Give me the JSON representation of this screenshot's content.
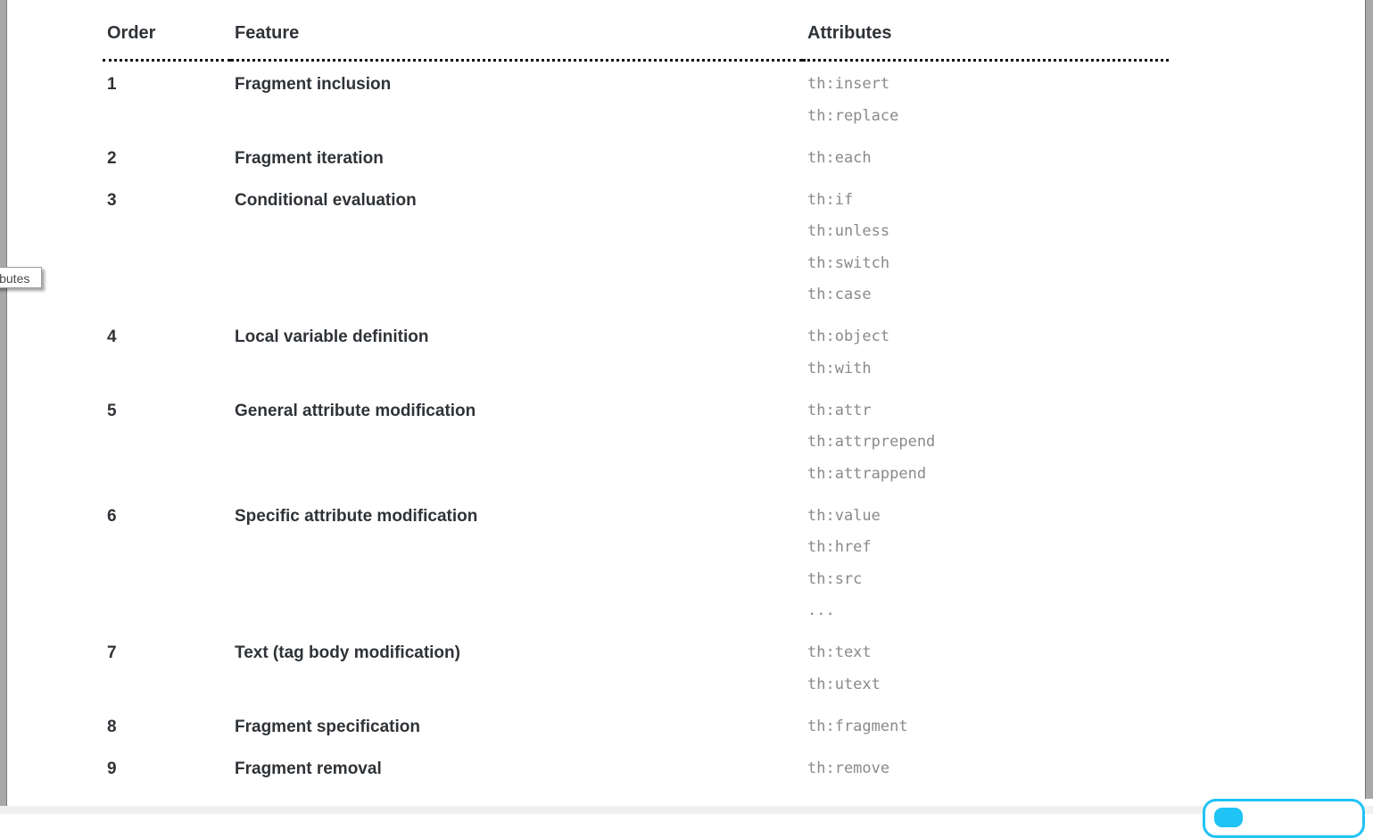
{
  "page": {
    "background": "#ffffff"
  },
  "colors": {
    "heading_text": "#2f3337",
    "attribute_code_text": "#888a8c",
    "rule_dotted": "#111111",
    "edge_strip": "#a8a8a8",
    "bottom_track": "#f0f0ef",
    "accent_cyan": "#1fc3f5"
  },
  "tooltip": {
    "text": "ibutes"
  },
  "table": {
    "headers": [
      "Order",
      "Feature",
      "Attributes"
    ],
    "rows": [
      {
        "order": "1",
        "feature": "Fragment inclusion",
        "attributes": [
          "th:insert",
          "th:replace"
        ]
      },
      {
        "order": "2",
        "feature": "Fragment iteration",
        "attributes": [
          "th:each"
        ]
      },
      {
        "order": "3",
        "feature": "Conditional evaluation",
        "attributes": [
          "th:if",
          "th:unless",
          "th:switch",
          "th:case"
        ]
      },
      {
        "order": "4",
        "feature": "Local variable definition",
        "attributes": [
          "th:object",
          "th:with"
        ]
      },
      {
        "order": "5",
        "feature": "General attribute modification",
        "attributes": [
          "th:attr",
          "th:attrprepend",
          "th:attrappend"
        ]
      },
      {
        "order": "6",
        "feature": "Specific attribute modification",
        "attributes": [
          "th:value",
          "th:href",
          "th:src",
          "..."
        ]
      },
      {
        "order": "7",
        "feature": "Text (tag body modification)",
        "attributes": [
          "th:text",
          "th:utext"
        ]
      },
      {
        "order": "8",
        "feature": "Fragment specification",
        "attributes": [
          "th:fragment"
        ]
      },
      {
        "order": "9",
        "feature": "Fragment removal",
        "attributes": [
          "th:remove"
        ]
      }
    ]
  }
}
